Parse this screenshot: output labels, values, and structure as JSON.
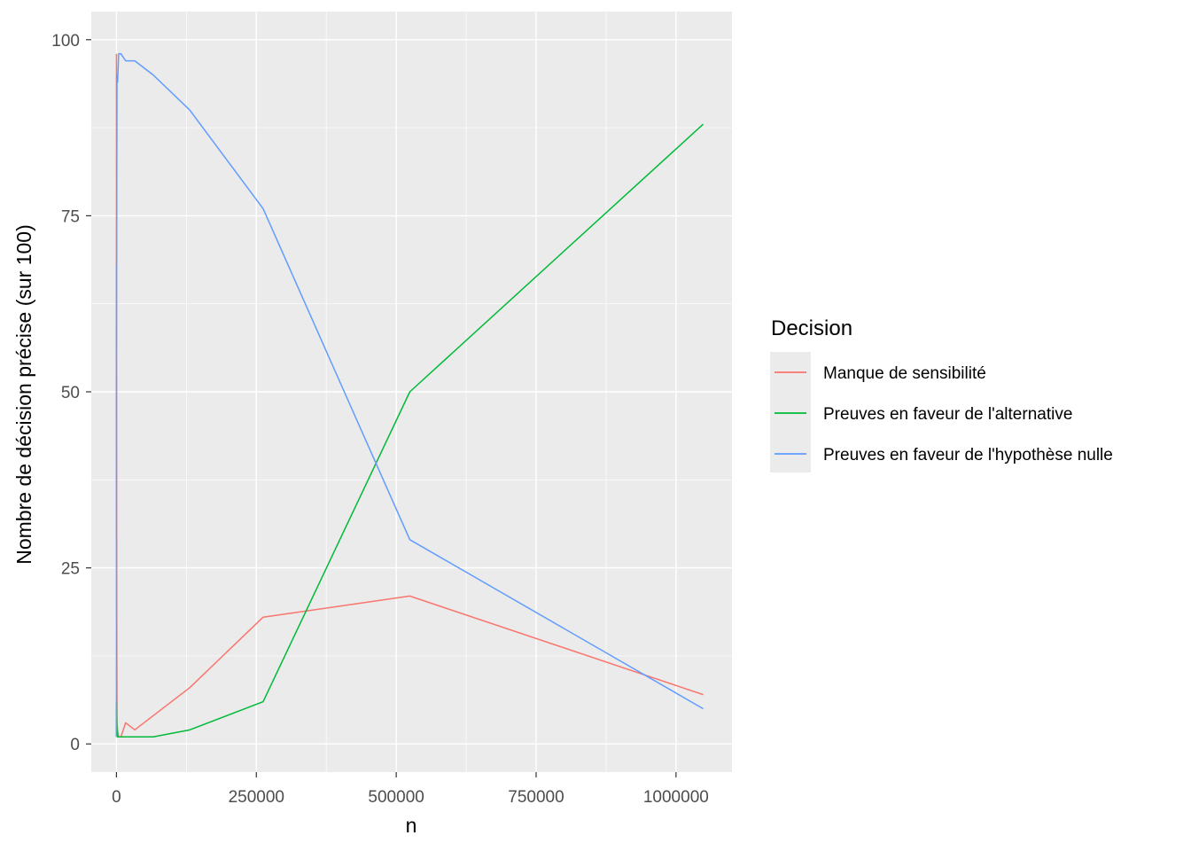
{
  "chart_data": {
    "type": "line",
    "xlabel": "n",
    "ylabel": "Nombre de décision précise (sur 100)",
    "xlim": [
      -45000,
      1100000
    ],
    "ylim": [
      -4,
      104
    ],
    "x_ticks": [
      0,
      250000,
      500000,
      750000,
      1000000
    ],
    "x_tick_labels": [
      "0",
      "250000",
      "500000",
      "750000",
      "1000000"
    ],
    "x_minor_ticks": [
      125000,
      375000,
      625000,
      875000
    ],
    "y_ticks": [
      0,
      25,
      50,
      75,
      100
    ],
    "y_tick_labels": [
      "0",
      "25",
      "50",
      "75",
      "100"
    ],
    "y_minor_ticks": [
      12.5,
      37.5,
      62.5,
      87.5
    ],
    "grid": true,
    "panel_background": "#ebebeb",
    "legend": {
      "title": "Decision",
      "position": "right"
    },
    "series": [
      {
        "name": "Manque de sensibilité",
        "color": "#F8766D",
        "x": [
          10,
          50,
          100,
          500,
          1000,
          2000,
          4000,
          8000,
          16384,
          32768,
          65536,
          131072,
          262144,
          524288,
          1048576
        ],
        "y": [
          98,
          29,
          55,
          20,
          3,
          2,
          1,
          1,
          3,
          2,
          4,
          8,
          18,
          21,
          7
        ]
      },
      {
        "name": "Preuves en faveur de l'alternative",
        "color": "#00BA38",
        "x": [
          10,
          50,
          100,
          500,
          1000,
          2000,
          4000,
          8000,
          16384,
          32768,
          65536,
          131072,
          262144,
          524288,
          1048576
        ],
        "y": [
          1,
          3,
          6,
          4,
          2,
          1,
          1,
          1,
          1,
          1,
          1,
          2,
          6,
          50,
          88
        ]
      },
      {
        "name": "Preuves en faveur de l'hypothèse nulle",
        "color": "#619CFF",
        "x": [
          10,
          50,
          100,
          500,
          1000,
          2000,
          4000,
          8000,
          16384,
          32768,
          65536,
          131072,
          262144,
          524288,
          1048576
        ],
        "y": [
          1,
          68,
          55,
          76,
          95,
          94,
          98,
          98,
          97,
          97,
          95,
          90,
          76,
          29,
          5
        ]
      }
    ]
  }
}
